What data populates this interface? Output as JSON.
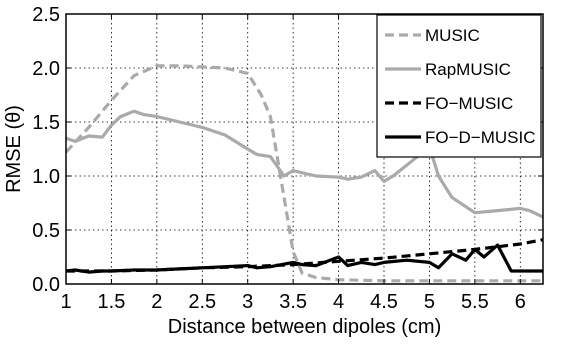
{
  "chart_data": {
    "type": "line",
    "xlabel": "Distance between dipoles (cm)",
    "ylabel": "RMSE (θ)",
    "xlim": [
      1,
      6.25
    ],
    "ylim": [
      0,
      2.5
    ],
    "xticks": [
      1,
      1.5,
      2,
      2.5,
      3,
      3.5,
      4,
      4.5,
      5,
      5.5,
      6
    ],
    "yticks": [
      0,
      0.5,
      1,
      1.5,
      2,
      2.5
    ],
    "xtick_labels": [
      "1",
      "1.5",
      "2",
      "2.5",
      "3",
      "3.5",
      "4",
      "4.5",
      "5",
      "5.5",
      "6"
    ],
    "ytick_labels": [
      "0.0",
      "0.5",
      "1.0",
      "1.5",
      "2.0",
      "2.5"
    ],
    "grid": true,
    "legend_position": "top-right",
    "series": [
      {
        "name": "MUSIC",
        "color": "#aaaaaa",
        "style": "dashed",
        "x": [
          1,
          1.25,
          1.5,
          1.75,
          2,
          2.25,
          2.5,
          2.75,
          3,
          3.15,
          3.25,
          3.4,
          3.5,
          3.6,
          3.75,
          4,
          4.5,
          5,
          5.5,
          6,
          6.25
        ],
        "y": [
          1.22,
          1.45,
          1.7,
          1.93,
          2.02,
          2.02,
          2.01,
          2.0,
          1.95,
          1.75,
          1.55,
          0.8,
          0.3,
          0.1,
          0.06,
          0.04,
          0.03,
          0.03,
          0.03,
          0.03,
          0.03
        ]
      },
      {
        "name": "RapMUSIC",
        "color": "#aaaaaa",
        "style": "solid",
        "x": [
          1,
          1.1,
          1.25,
          1.4,
          1.5,
          1.6,
          1.75,
          1.85,
          2,
          2.25,
          2.5,
          2.75,
          3,
          3.1,
          3.25,
          3.4,
          3.5,
          3.6,
          3.75,
          4,
          4.1,
          4.25,
          4.4,
          4.5,
          4.6,
          4.75,
          5,
          5.1,
          5.25,
          5.5,
          5.75,
          6,
          6.1,
          6.25
        ],
        "y": [
          1.35,
          1.32,
          1.37,
          1.36,
          1.47,
          1.55,
          1.6,
          1.57,
          1.55,
          1.5,
          1.45,
          1.38,
          1.25,
          1.2,
          1.18,
          1.0,
          1.05,
          1.03,
          1.0,
          0.99,
          0.97,
          0.99,
          1.05,
          0.95,
          1.0,
          1.1,
          1.27,
          1.0,
          0.8,
          0.66,
          0.68,
          0.7,
          0.68,
          0.62
        ]
      },
      {
        "name": "FO−MUSIC",
        "color": "#000000",
        "style": "dashed",
        "x": [
          1,
          1.5,
          2,
          2.5,
          3,
          3.5,
          4,
          4.5,
          5,
          5.5,
          6,
          6.25
        ],
        "y": [
          0.12,
          0.12,
          0.13,
          0.15,
          0.16,
          0.18,
          0.21,
          0.24,
          0.28,
          0.32,
          0.37,
          0.41
        ]
      },
      {
        "name": "FO−D−MUSIC",
        "color": "#000000",
        "style": "solid",
        "x": [
          1,
          1.1,
          1.25,
          1.4,
          1.5,
          1.75,
          2,
          2.25,
          2.5,
          2.75,
          3,
          3.1,
          3.25,
          3.5,
          3.6,
          3.75,
          4,
          4.1,
          4.25,
          4.4,
          4.5,
          4.75,
          5,
          5.1,
          5.25,
          5.4,
          5.5,
          5.6,
          5.75,
          5.9,
          6,
          6.25
        ],
        "y": [
          0.12,
          0.13,
          0.11,
          0.12,
          0.12,
          0.13,
          0.13,
          0.14,
          0.15,
          0.16,
          0.17,
          0.15,
          0.16,
          0.2,
          0.18,
          0.17,
          0.25,
          0.17,
          0.2,
          0.18,
          0.2,
          0.22,
          0.2,
          0.15,
          0.28,
          0.22,
          0.32,
          0.25,
          0.36,
          0.12,
          0.12,
          0.12
        ]
      }
    ]
  }
}
